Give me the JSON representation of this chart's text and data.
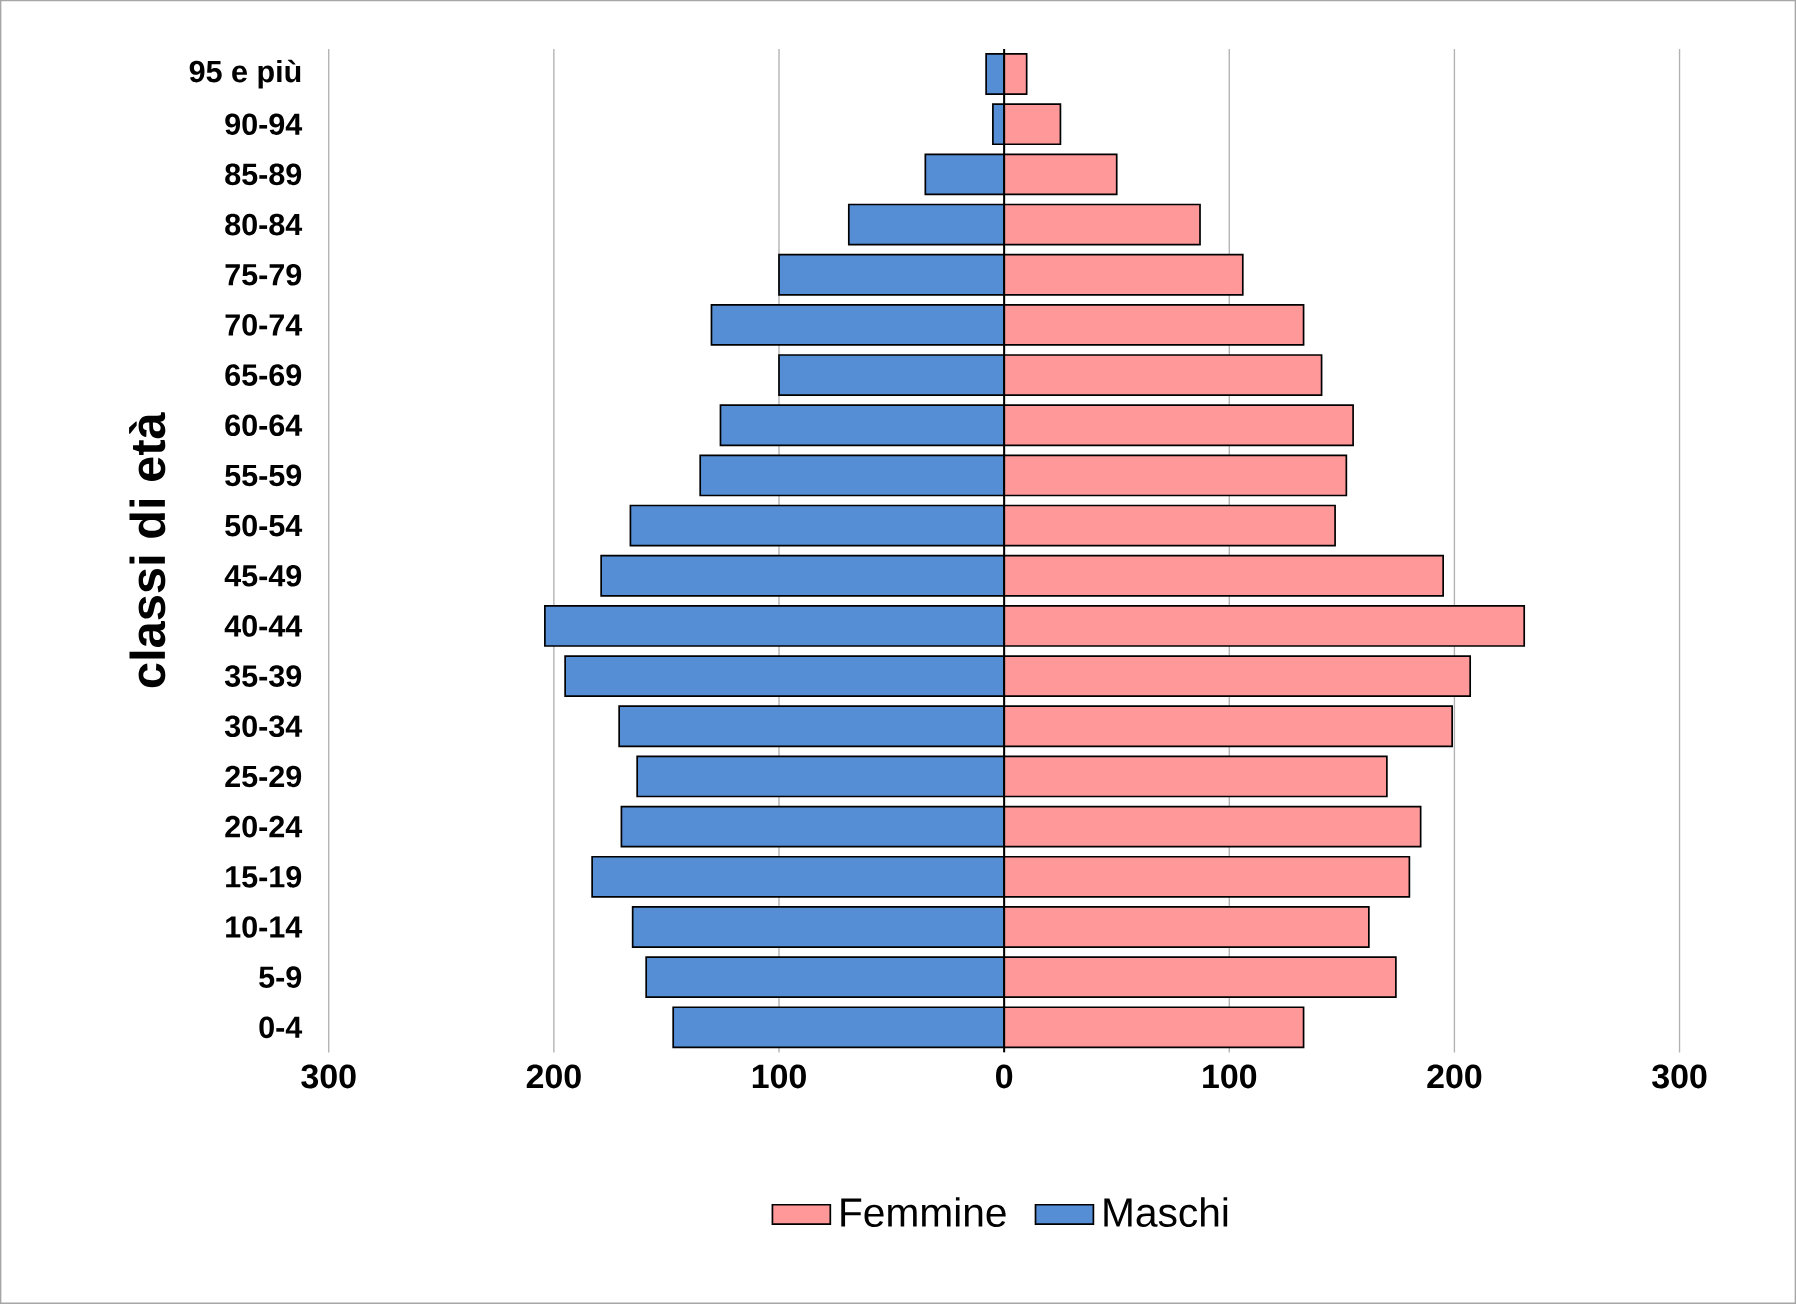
{
  "chart_data": {
    "type": "bar",
    "orientation": "horizontal",
    "ylabel": "classi di età",
    "categories": [
      "95 e più",
      "90-94",
      "85-89",
      "80-84",
      "75-79",
      "70-74",
      "65-69",
      "60-64",
      "55-59",
      "50-54",
      "45-49",
      "40-44",
      "35-39",
      "30-34",
      "25-29",
      "20-24",
      "15-19",
      "10-14",
      "5-9",
      "0-4"
    ],
    "series": [
      {
        "name": "Femmine",
        "color": "#ff9999",
        "values": [
          10,
          25,
          50,
          87,
          106,
          133,
          141,
          155,
          152,
          147,
          195,
          231,
          207,
          199,
          170,
          185,
          180,
          162,
          174,
          133
        ]
      },
      {
        "name": "Maschi",
        "color": "#558ed5",
        "values": [
          -8,
          -5,
          -35,
          -69,
          -100,
          -130,
          -100,
          -126,
          -135,
          -166,
          -179,
          -204,
          -195,
          -171,
          -163,
          -170,
          -183,
          -165,
          -159,
          -147
        ]
      }
    ],
    "xlim": [
      -300,
      300
    ],
    "xticks": [
      {
        "value": -300,
        "label": "300"
      },
      {
        "value": -200,
        "label": "200"
      },
      {
        "value": -100,
        "label": "100"
      },
      0,
      100,
      200,
      300
    ],
    "grid": "x",
    "legend": "bottom",
    "stacked": true
  }
}
